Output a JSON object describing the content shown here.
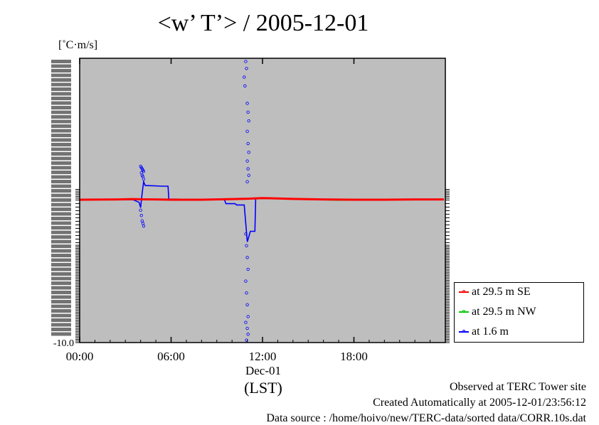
{
  "chart_data": {
    "type": "line",
    "title": "<w’ T’> / 2005-12-01",
    "ylabel": "[˚C·m/s]",
    "xlabel": "(LST)",
    "date_label": "Dec-01",
    "x_ticks": [
      "00:00",
      "06:00",
      "12:00",
      "18:00"
    ],
    "xlim_hours": [
      0,
      24
    ],
    "ylim": [
      -10.0,
      0.8
    ],
    "y_ticks_visible": [
      "-10.0"
    ],
    "grid": true,
    "legend_position": "lower-right-outside",
    "background_color": "#bebebe",
    "series": [
      {
        "name": "at 29.5 m SE",
        "color": "#ff0000",
        "x": [
          0,
          2.5,
          3.5,
          4.2,
          5,
          6,
          8,
          10,
          11,
          12,
          13,
          14,
          16,
          18,
          20,
          22,
          23.9
        ],
        "y": [
          0.0,
          0.02,
          0.05,
          0.03,
          0.02,
          0.0,
          0.0,
          0.05,
          0.08,
          0.12,
          0.1,
          0.06,
          0.02,
          0.0,
          0.0,
          0.02,
          0.02
        ]
      },
      {
        "name": "at 29.5 m NW",
        "color": "#00c800",
        "x": [
          0,
          3,
          5,
          7,
          9,
          11,
          12,
          13,
          15,
          17,
          19,
          21,
          23.9
        ],
        "y": [
          0.0,
          0.03,
          0.01,
          -0.02,
          0.01,
          0.06,
          0.1,
          0.08,
          0.02,
          -0.02,
          0.0,
          0.01,
          0.01
        ]
      },
      {
        "name": "at 1.6 m",
        "color": "#0000ff",
        "x": [
          0,
          3.5,
          3.9,
          4.0,
          4.1,
          4.2,
          4.3,
          4.4,
          5.5,
          5.8,
          5.85,
          9,
          9.5,
          9.6,
          10.2,
          10.3,
          10.8,
          11.0,
          11.05,
          11.2,
          11.5,
          11.55,
          12,
          14,
          18,
          23.9
        ],
        "y": [
          0.0,
          0.0,
          -0.1,
          -0.3,
          0.5,
          1.4,
          1.1,
          1.1,
          1.05,
          1.05,
          0.05,
          0.0,
          0.0,
          -0.15,
          -0.15,
          -0.2,
          -0.2,
          -1.6,
          -1.5,
          -1.2,
          -1.2,
          0.1,
          0.12,
          0.05,
          0.0,
          0.0
        ]
      }
    ],
    "scatter_series": {
      "name": "at 1.6 m",
      "color": "#0000ff",
      "points": [
        [
          4.0,
          2.6
        ],
        [
          4.05,
          2.5
        ],
        [
          4.1,
          2.4
        ],
        [
          4.15,
          2.3
        ],
        [
          4.2,
          2.2
        ],
        [
          4.05,
          2.1
        ],
        [
          4.1,
          1.9
        ],
        [
          4.15,
          1.8
        ],
        [
          4.2,
          1.6
        ],
        [
          4.0,
          -0.4
        ],
        [
          4.05,
          -0.6
        ],
        [
          4.1,
          -0.8
        ],
        [
          4.15,
          -0.9
        ],
        [
          4.2,
          -1.0
        ],
        [
          10.9,
          8.6
        ],
        [
          10.95,
          8.2
        ],
        [
          10.8,
          7.7
        ],
        [
          10.85,
          7.2
        ],
        [
          11.0,
          6.2
        ],
        [
          11.05,
          5.7
        ],
        [
          11.1,
          5.2
        ],
        [
          11.0,
          4.6
        ],
        [
          11.05,
          3.9
        ],
        [
          11.1,
          3.4
        ],
        [
          11.0,
          2.9
        ],
        [
          11.05,
          2.4
        ],
        [
          11.1,
          1.9
        ],
        [
          11.0,
          1.4
        ],
        [
          10.9,
          -1.3
        ],
        [
          10.95,
          -1.8
        ],
        [
          11.0,
          -2.8
        ],
        [
          11.05,
          -3.8
        ],
        [
          10.9,
          -4.8
        ],
        [
          10.95,
          -5.8
        ],
        [
          11.0,
          -6.8
        ],
        [
          11.05,
          -7.8
        ],
        [
          10.9,
          -8.3
        ],
        [
          11.0,
          -8.8
        ],
        [
          11.05,
          -9.3
        ],
        [
          10.95,
          -9.8
        ]
      ]
    }
  },
  "footer": {
    "line1": "Observed at TERC Tower site",
    "line2": "Created Automatically at 2005-12-01/23:56:12",
    "line3": "Data source : /home/hoivo/new/TERC-data/sorted  data/CORR.10s.dat"
  }
}
